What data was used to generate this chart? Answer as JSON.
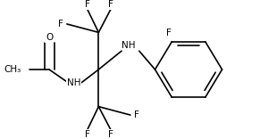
{
  "background": "#ffffff",
  "line_color": "#000000",
  "lw": 1.2,
  "fs": 7.5,
  "figsize": [
    2.91,
    1.56
  ],
  "dpi": 100,
  "xlim": [
    0,
    2.91
  ],
  "ylim": [
    0,
    1.56
  ]
}
